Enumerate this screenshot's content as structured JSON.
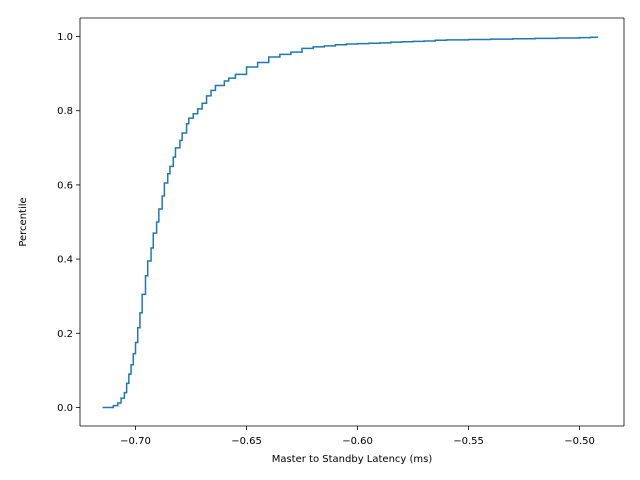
{
  "chart_data": {
    "type": "line",
    "title": "",
    "xlabel": "Master to Standby Latency (ms)",
    "ylabel": "Percentile",
    "xlim": [
      -0.725,
      -0.48
    ],
    "ylim": [
      -0.05,
      1.05
    ],
    "grid": false,
    "x_ticks": [
      -0.7,
      -0.65,
      -0.6,
      -0.55,
      -0.5
    ],
    "x_tick_labels": [
      "−0.70",
      "−0.65",
      "−0.60",
      "−0.55",
      "−0.50"
    ],
    "y_ticks": [
      0.0,
      0.2,
      0.4,
      0.6,
      0.8,
      1.0
    ],
    "y_tick_labels": [
      "0.0",
      "0.2",
      "0.4",
      "0.6",
      "0.8",
      "1.0"
    ],
    "line_color": "#1f77b4",
    "series": [
      {
        "step": true,
        "x": [
          -0.7148,
          -0.71,
          -0.708,
          -0.7065,
          -0.705,
          -0.704,
          -0.703,
          -0.702,
          -0.701,
          -0.7,
          -0.699,
          -0.698,
          -0.697,
          -0.6955,
          -0.6945,
          -0.693,
          -0.692,
          -0.6905,
          -0.6895,
          -0.688,
          -0.687,
          -0.6855,
          -0.6845,
          -0.683,
          -0.682,
          -0.68,
          -0.679,
          -0.677,
          -0.676,
          -0.674,
          -0.672,
          -0.67,
          -0.668,
          -0.666,
          -0.664,
          -0.66,
          -0.658,
          -0.655,
          -0.65,
          -0.645,
          -0.64,
          -0.635,
          -0.63,
          -0.625,
          -0.62,
          -0.615,
          -0.61,
          -0.605,
          -0.6,
          -0.595,
          -0.59,
          -0.585,
          -0.58,
          -0.575,
          -0.57,
          -0.565,
          -0.56,
          -0.55,
          -0.54,
          -0.53,
          -0.52,
          -0.51,
          -0.5,
          -0.495,
          -0.492
        ],
        "y": [
          0.0,
          0.005,
          0.012,
          0.025,
          0.04,
          0.065,
          0.09,
          0.115,
          0.145,
          0.175,
          0.215,
          0.255,
          0.305,
          0.355,
          0.395,
          0.43,
          0.47,
          0.5,
          0.535,
          0.57,
          0.605,
          0.63,
          0.65,
          0.675,
          0.7,
          0.72,
          0.74,
          0.765,
          0.78,
          0.792,
          0.805,
          0.82,
          0.84,
          0.855,
          0.868,
          0.88,
          0.888,
          0.898,
          0.918,
          0.93,
          0.945,
          0.952,
          0.958,
          0.968,
          0.972,
          0.975,
          0.978,
          0.98,
          0.981,
          0.982,
          0.983,
          0.985,
          0.986,
          0.987,
          0.988,
          0.99,
          0.991,
          0.992,
          0.993,
          0.994,
          0.995,
          0.996,
          0.997,
          0.998,
          1.0
        ]
      }
    ]
  }
}
